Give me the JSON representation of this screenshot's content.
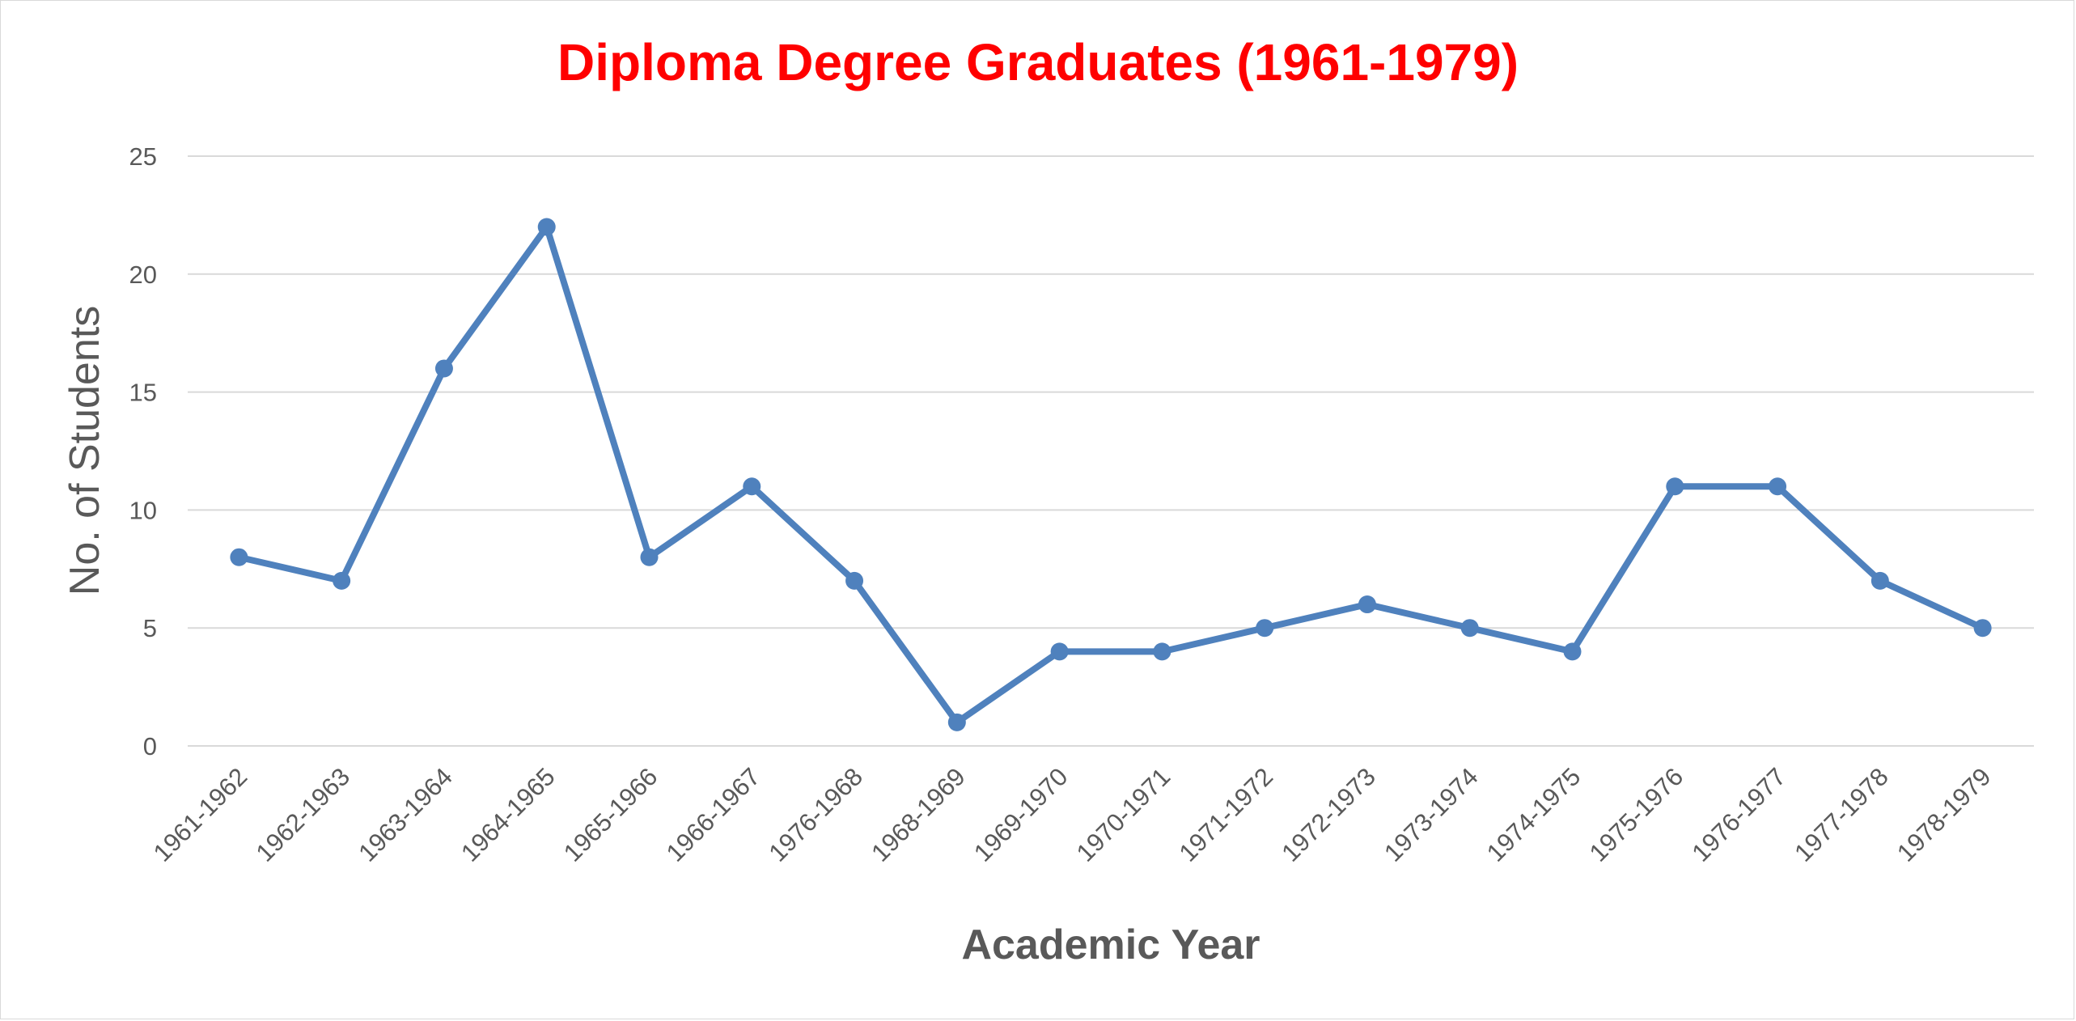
{
  "chart_data": {
    "type": "line",
    "title": "Diploma Degree Graduates (1961-1979)",
    "xlabel": "Academic Year",
    "ylabel": "No. of Students",
    "ylim": [
      0,
      25
    ],
    "yticks": [
      0,
      5,
      10,
      15,
      20,
      25
    ],
    "grid": true,
    "legend": "none",
    "categories": [
      "1961-1962",
      "1962-1963",
      "1963-1964",
      "1964-1965",
      "1965-1966",
      "1966-1967",
      "1976-1968",
      "1968-1969",
      "1969-1970",
      "1970-1971",
      "1971-1972",
      "1972-1973",
      "1973-1974",
      "1974-1975",
      "1975-1976",
      "1976-1977",
      "1977-1978",
      "1978-1979"
    ],
    "series": [
      {
        "values": [
          8,
          7,
          16,
          22,
          8,
          11,
          7,
          1,
          4,
          4,
          5,
          6,
          5,
          4,
          11,
          11,
          7,
          5
        ],
        "color": "#4f81bd"
      }
    ],
    "colors": {
      "title": "#ff0000",
      "grid": "#d9d9d9",
      "text": "#595959"
    }
  }
}
